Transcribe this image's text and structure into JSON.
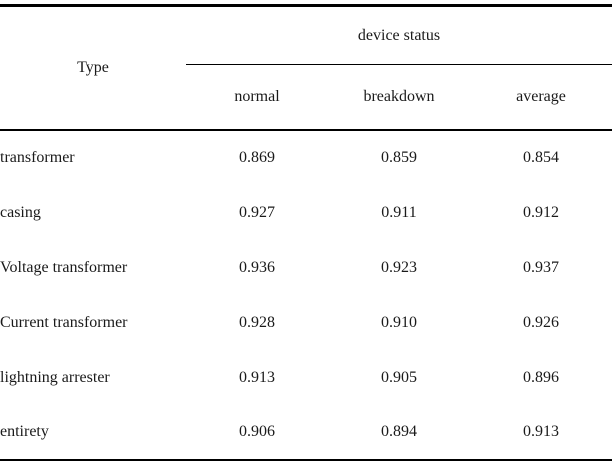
{
  "table": {
    "type_header": "Type",
    "spanner": "device status",
    "columns": [
      "normal",
      "breakdown",
      "average"
    ],
    "rows": [
      {
        "label": "transformer",
        "values": [
          "0.869",
          "0.859",
          "0.854"
        ]
      },
      {
        "label": "casing",
        "values": [
          "0.927",
          "0.911",
          "0.912"
        ]
      },
      {
        "label": "Voltage transformer",
        "values": [
          "0.936",
          "0.923",
          "0.937"
        ]
      },
      {
        "label": "Current transformer",
        "values": [
          "0.928",
          "0.910",
          "0.926"
        ]
      },
      {
        "label": "lightning arrester",
        "values": [
          "0.913",
          "0.905",
          "0.896"
        ]
      },
      {
        "label": "entirety",
        "values": [
          "0.906",
          "0.894",
          "0.913"
        ]
      }
    ],
    "colors": {
      "rule_line": "#000000",
      "text": "#1a1a1a",
      "background": "#ffffff"
    }
  }
}
